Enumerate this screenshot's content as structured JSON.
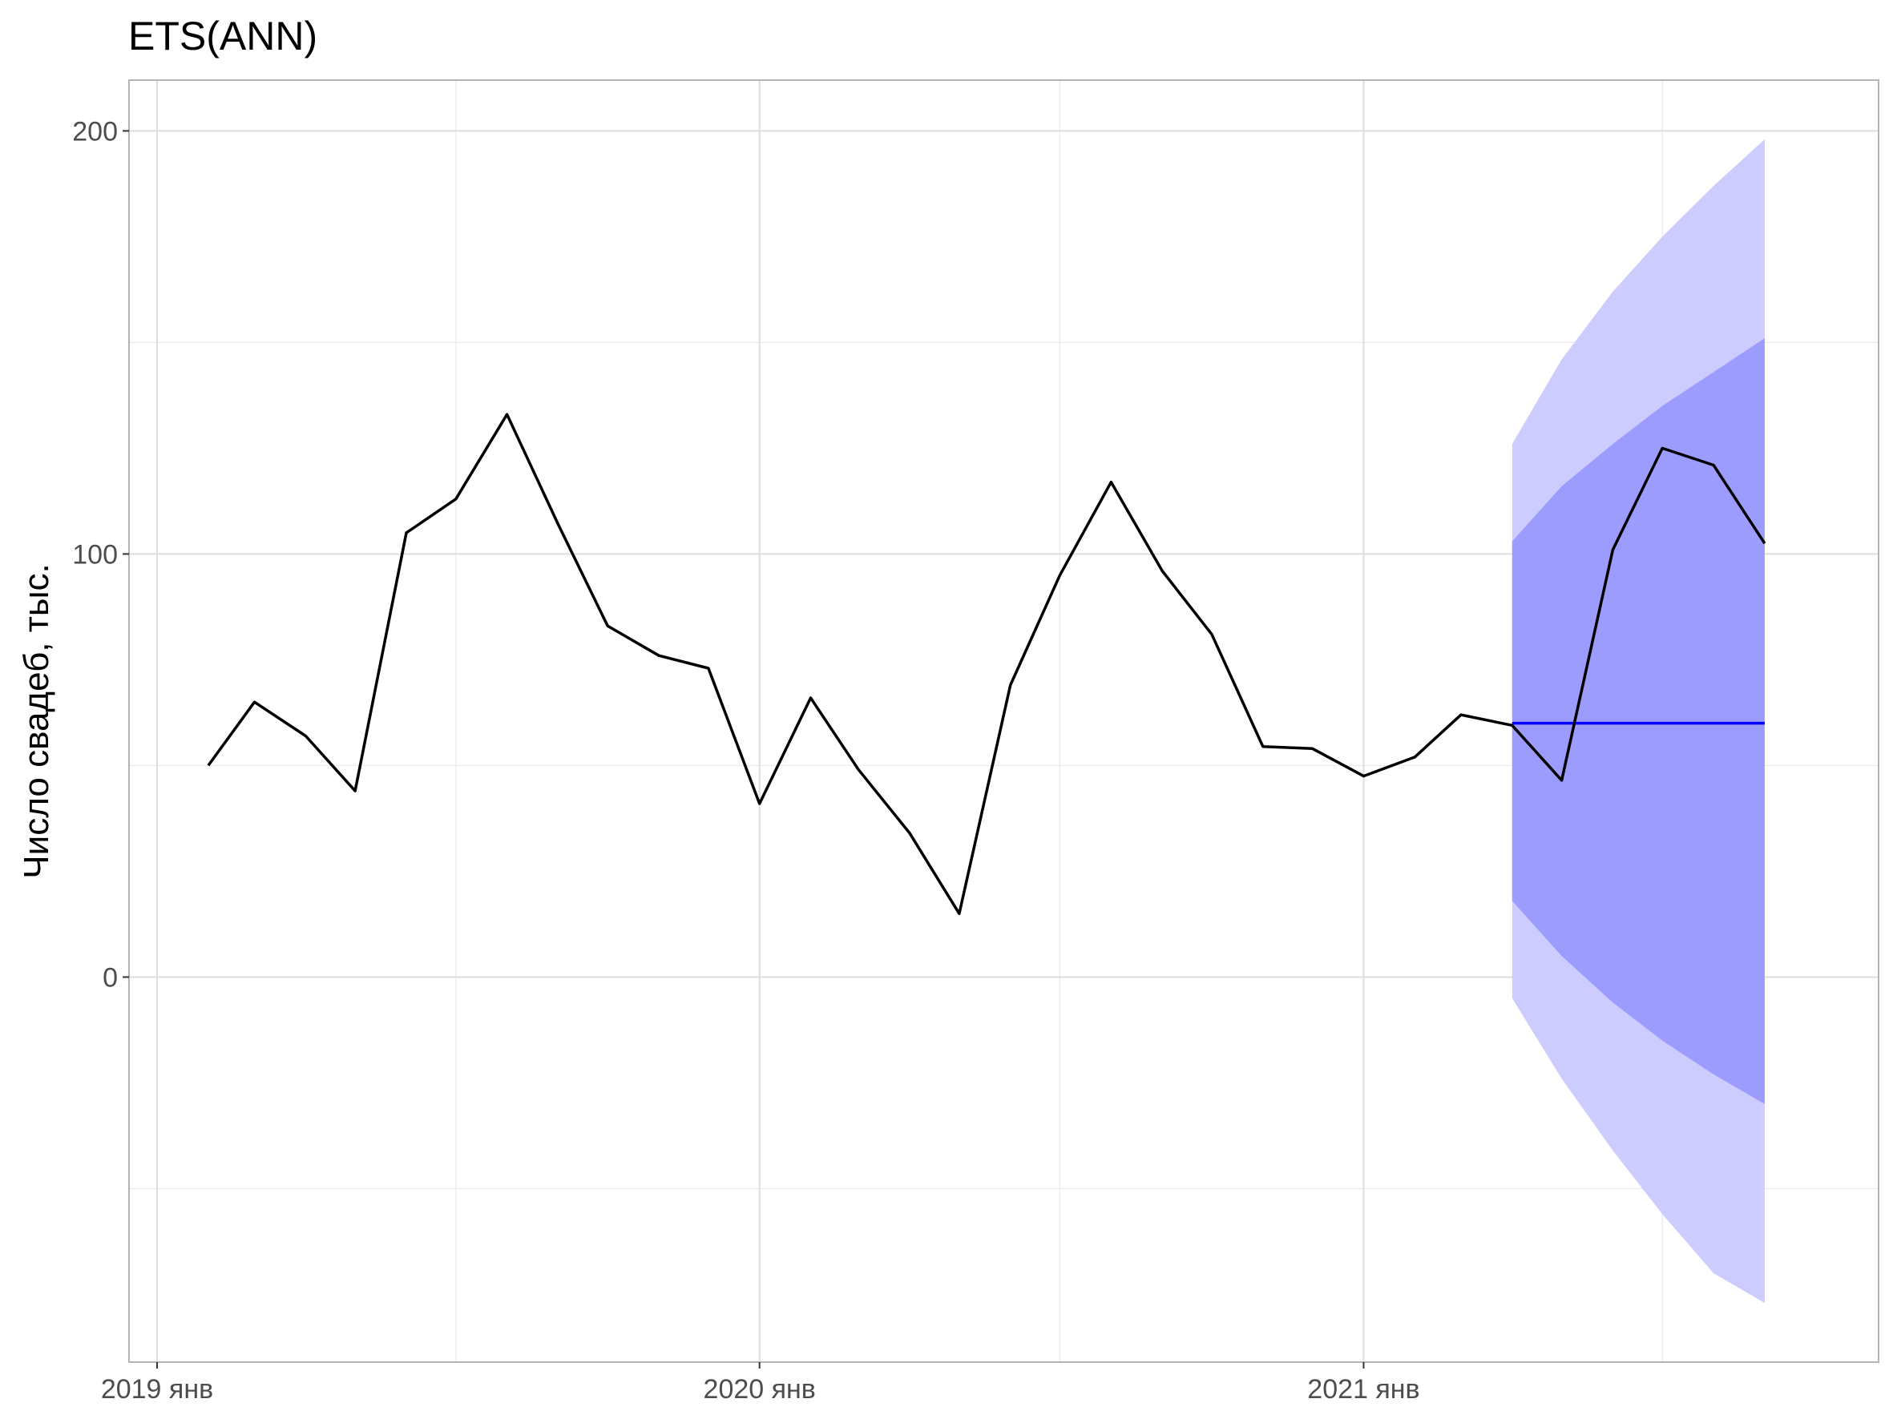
{
  "chart_data": {
    "type": "line",
    "title": "ETS(ANN)",
    "xlabel": "",
    "ylabel": "Число свадеб, тыс.",
    "x_ticks": [
      {
        "date": "2019-01",
        "label": "2019 янв"
      },
      {
        "date": "2020-01",
        "label": "2020 янв"
      },
      {
        "date": "2021-01",
        "label": "2021 янв"
      }
    ],
    "y_ticks": [
      0,
      100,
      200
    ],
    "ylim": [
      -91,
      212
    ],
    "xlim": [
      "2018-12-15",
      "2021-11-09"
    ],
    "grid": true,
    "series": [
      {
        "role": "actual",
        "color": "#000000",
        "points": [
          [
            "2019-02",
            50
          ],
          [
            "2019-03",
            65
          ],
          [
            "2019-04",
            57
          ],
          [
            "2019-05",
            44
          ],
          [
            "2019-06",
            105
          ],
          [
            "2019-07",
            113
          ],
          [
            "2019-08",
            133
          ],
          [
            "2019-09",
            107
          ],
          [
            "2019-10",
            83
          ],
          [
            "2019-11",
            76
          ],
          [
            "2019-12",
            73
          ],
          [
            "2020-01",
            41
          ],
          [
            "2020-02",
            66
          ],
          [
            "2020-03",
            49
          ],
          [
            "2020-04",
            34
          ],
          [
            "2020-05",
            15
          ],
          [
            "2020-06",
            69
          ],
          [
            "2020-07",
            95
          ],
          [
            "2020-08",
            117
          ],
          [
            "2020-09",
            96
          ],
          [
            "2020-10",
            81
          ],
          [
            "2020-11",
            54.5
          ],
          [
            "2020-12",
            54
          ],
          [
            "2021-01",
            47.5
          ],
          [
            "2021-02",
            52
          ],
          [
            "2021-03",
            62
          ],
          [
            "2021-04",
            59.5
          ],
          [
            "2021-05",
            46.5
          ],
          [
            "2021-06",
            101
          ],
          [
            "2021-07",
            125
          ],
          [
            "2021-08",
            121
          ],
          [
            "2021-09",
            102.5
          ]
        ]
      },
      {
        "role": "forecast",
        "color": "#0000ff",
        "points": [
          [
            "2021-04",
            60
          ],
          [
            "2021-05",
            60
          ],
          [
            "2021-06",
            60
          ],
          [
            "2021-07",
            60
          ],
          [
            "2021-08",
            60
          ],
          [
            "2021-09",
            60
          ]
        ]
      }
    ],
    "intervals": [
      {
        "level": 95,
        "color": "#ccccff",
        "x": [
          "2021-04",
          "2021-05",
          "2021-06",
          "2021-07",
          "2021-08",
          "2021-09"
        ],
        "lower": [
          -5,
          -24,
          -41,
          -56,
          -70,
          -77
        ],
        "upper": [
          126,
          146,
          162,
          175,
          187,
          198
        ]
      },
      {
        "level": 80,
        "color": "#9c9cff",
        "x": [
          "2021-04",
          "2021-05",
          "2021-06",
          "2021-07",
          "2021-08",
          "2021-09"
        ],
        "lower": [
          18,
          5,
          -6,
          -15,
          -23,
          -30
        ],
        "upper": [
          103,
          116,
          126,
          135,
          143,
          151
        ]
      }
    ]
  }
}
